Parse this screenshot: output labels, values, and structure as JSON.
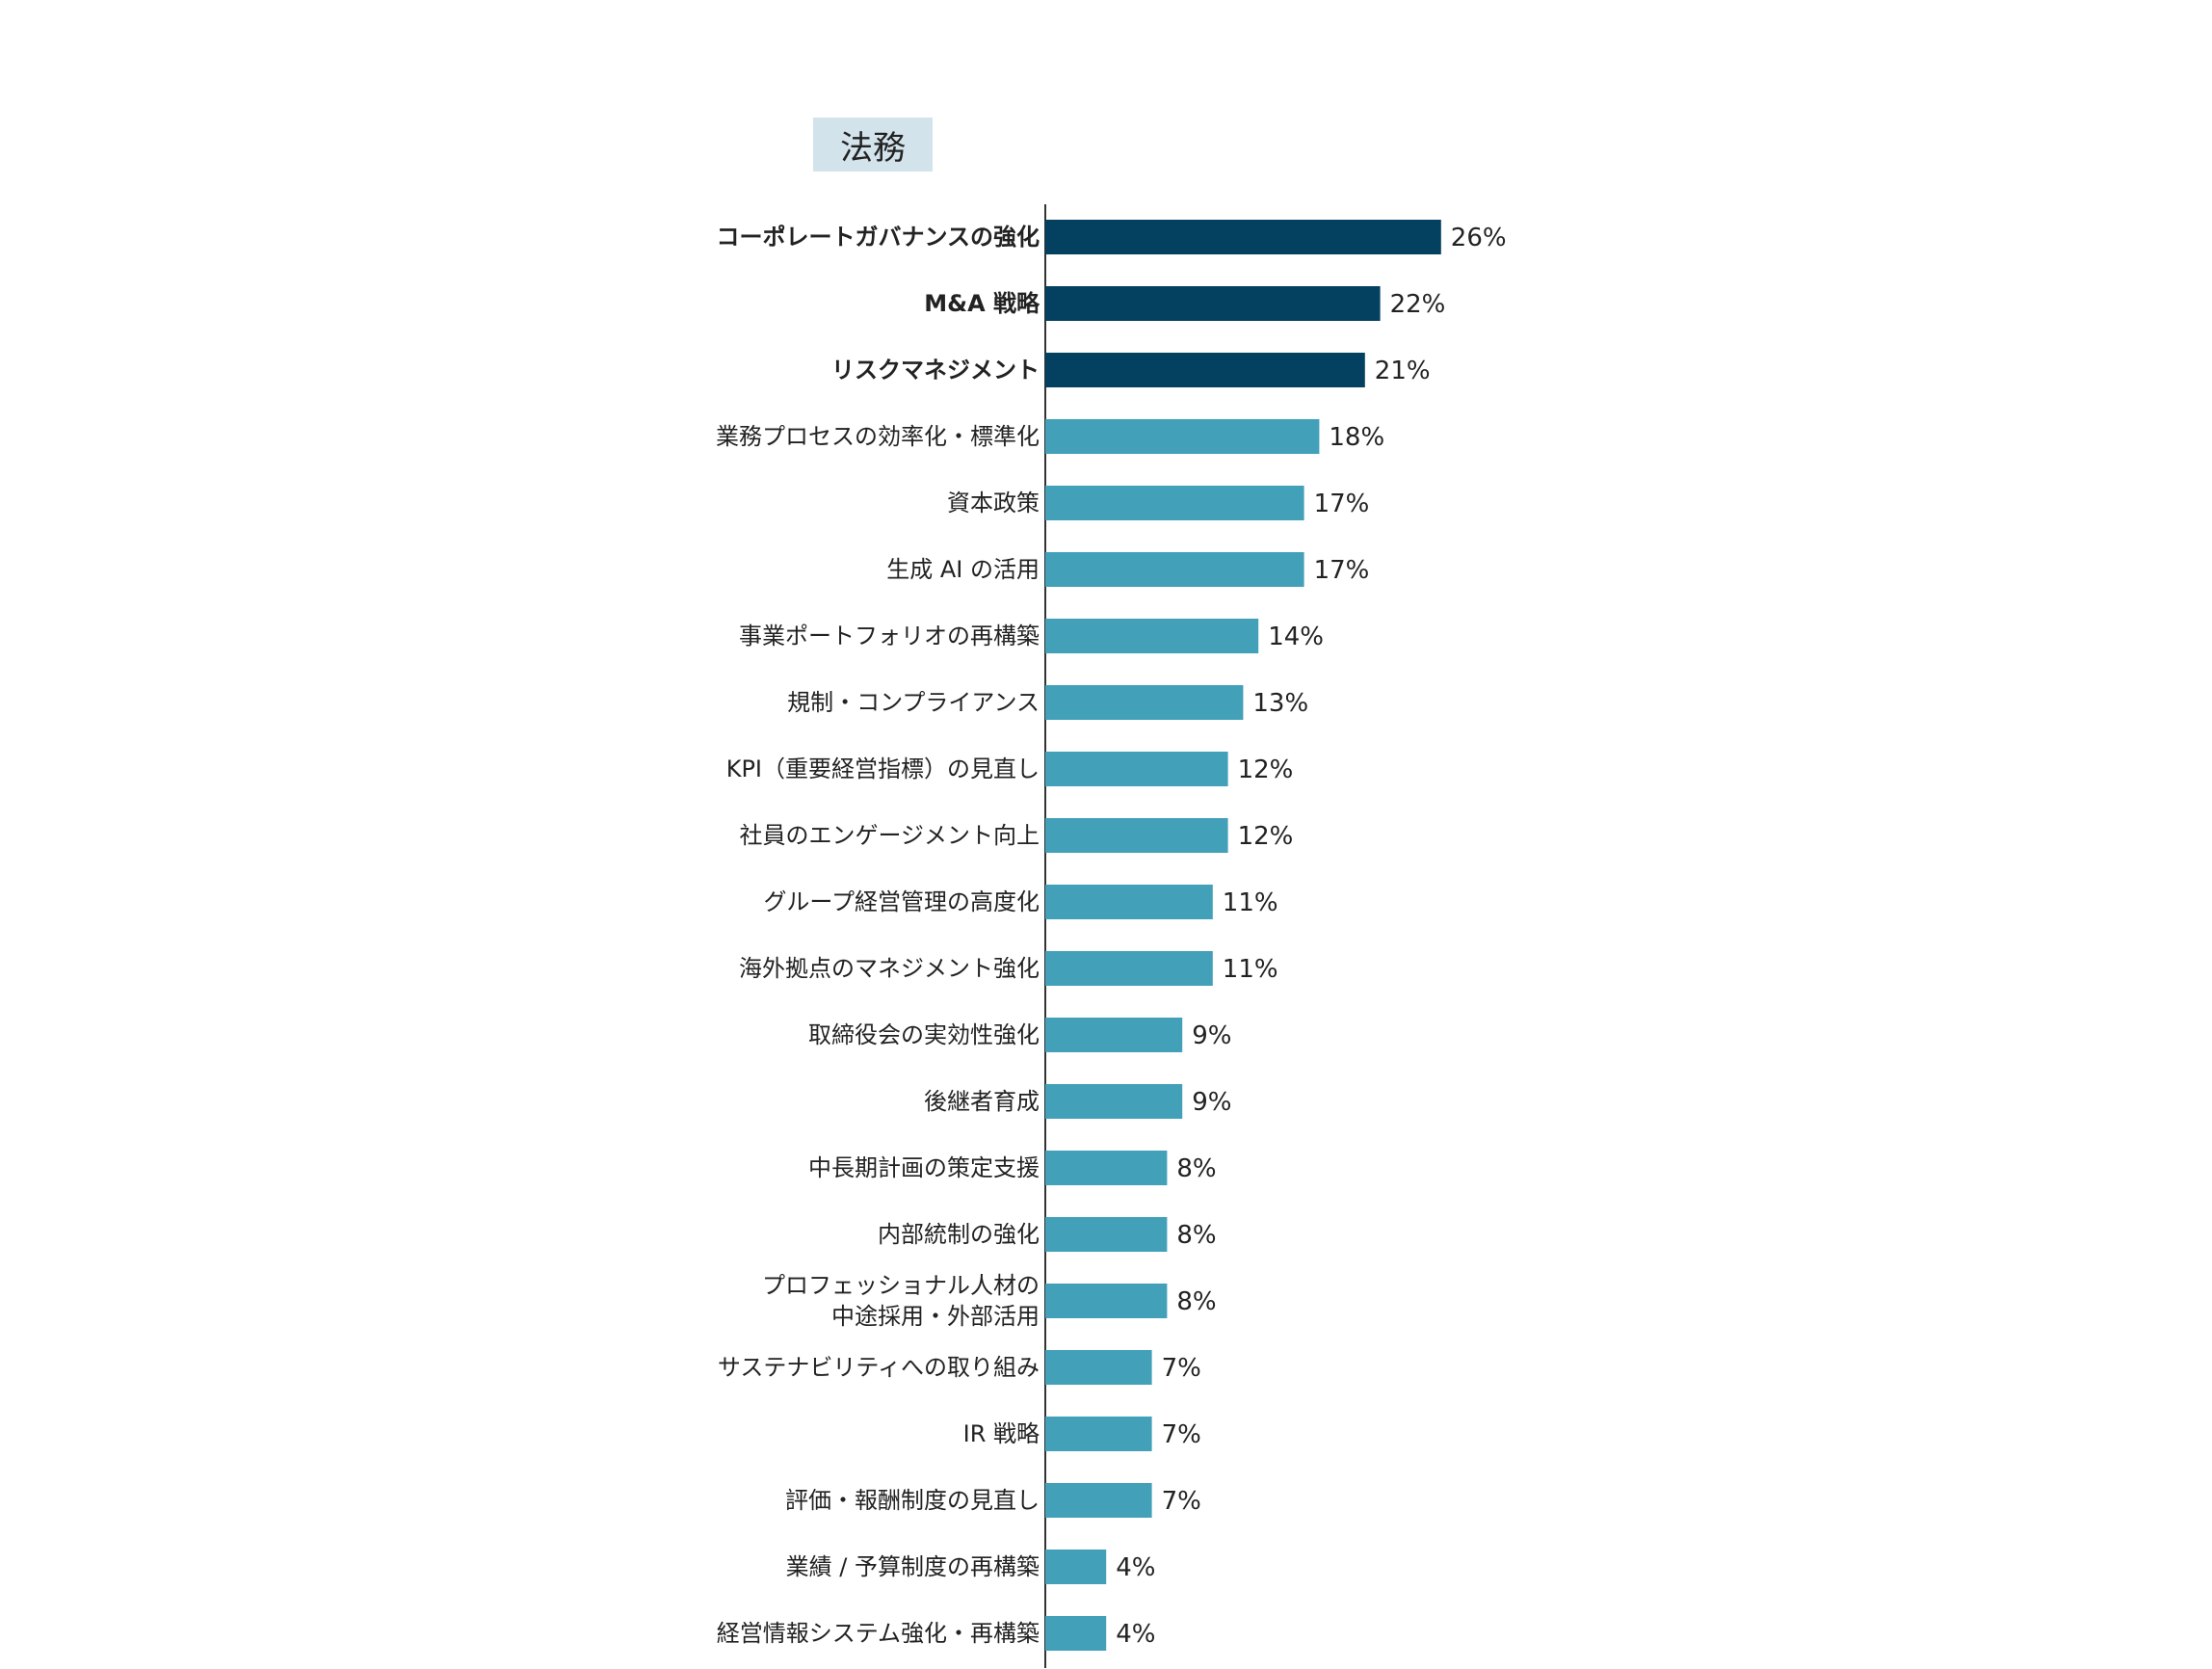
{
  "chart_data": {
    "type": "bar",
    "orientation": "horizontal",
    "title": "法務",
    "highlight_color": "#04405f",
    "base_color": "#42a1b9",
    "categories": [
      {
        "label": [
          "コーポレートガバナンスの強化"
        ],
        "value": 26,
        "value_label": "26%",
        "highlight": true
      },
      {
        "label": [
          "M&A 戦略"
        ],
        "value": 22,
        "value_label": "22%",
        "highlight": true
      },
      {
        "label": [
          "リスクマネジメント"
        ],
        "value": 21,
        "value_label": "21%",
        "highlight": true
      },
      {
        "label": [
          "業務プロセスの効率化・標準化"
        ],
        "value": 18,
        "value_label": "18%",
        "highlight": false
      },
      {
        "label": [
          "資本政策"
        ],
        "value": 17,
        "value_label": "17%",
        "highlight": false
      },
      {
        "label": [
          "生成 AI の活用"
        ],
        "value": 17,
        "value_label": "17%",
        "highlight": false
      },
      {
        "label": [
          "事業ポートフォリオの再構築"
        ],
        "value": 14,
        "value_label": "14%",
        "highlight": false
      },
      {
        "label": [
          "規制・コンプライアンス"
        ],
        "value": 13,
        "value_label": "13%",
        "highlight": false
      },
      {
        "label": [
          "KPI（重要経営指標）の見直し"
        ],
        "value": 12,
        "value_label": "12%",
        "highlight": false
      },
      {
        "label": [
          "社員のエンゲージメント向上"
        ],
        "value": 12,
        "value_label": "12%",
        "highlight": false
      },
      {
        "label": [
          "グループ経営管理の高度化"
        ],
        "value": 11,
        "value_label": "11%",
        "highlight": false
      },
      {
        "label": [
          "海外拠点のマネジメント強化"
        ],
        "value": 11,
        "value_label": "11%",
        "highlight": false
      },
      {
        "label": [
          "取締役会の実効性強化"
        ],
        "value": 9,
        "value_label": "9%",
        "highlight": false
      },
      {
        "label": [
          "後継者育成"
        ],
        "value": 9,
        "value_label": "9%",
        "highlight": false
      },
      {
        "label": [
          "中長期計画の策定支援"
        ],
        "value": 8,
        "value_label": "8%",
        "highlight": false
      },
      {
        "label": [
          "内部統制の強化"
        ],
        "value": 8,
        "value_label": "8%",
        "highlight": false
      },
      {
        "label": [
          "プロフェッショナル人材の",
          "中途採用・外部活用"
        ],
        "value": 8,
        "value_label": "8%",
        "highlight": false
      },
      {
        "label": [
          "サステナビリティへの取り組み"
        ],
        "value": 7,
        "value_label": "7%",
        "highlight": false
      },
      {
        "label": [
          "IR 戦略"
        ],
        "value": 7,
        "value_label": "7%",
        "highlight": false
      },
      {
        "label": [
          "評価・報酬制度の見直し"
        ],
        "value": 7,
        "value_label": "7%",
        "highlight": false
      },
      {
        "label": [
          "業績 / 予算制度の再構築"
        ],
        "value": 4,
        "value_label": "4%",
        "highlight": false
      },
      {
        "label": [
          "経営情報システム強化・再構築"
        ],
        "value": 4,
        "value_label": "4%",
        "highlight": false
      }
    ]
  }
}
